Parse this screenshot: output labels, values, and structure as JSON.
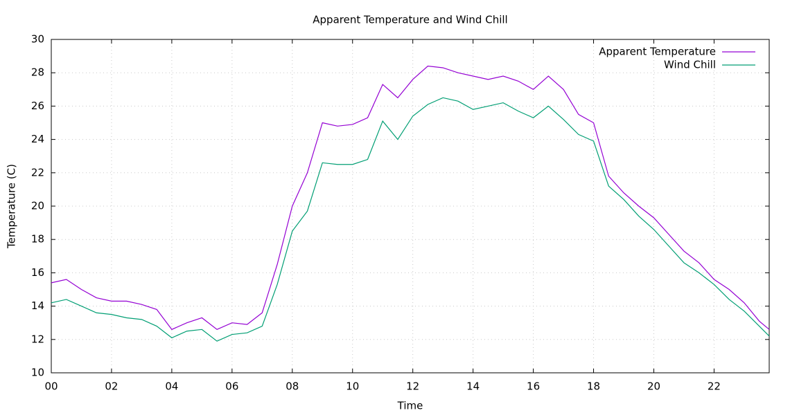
{
  "chart_data": {
    "type": "line",
    "title": "Apparent Temperature and Wind Chill",
    "x_label": "Time",
    "y_label": "Temperature (C)",
    "x": [
      0,
      0.5,
      1,
      1.5,
      2,
      2.5,
      3,
      3.5,
      4,
      4.5,
      5,
      5.5,
      6,
      6.5,
      7,
      7.5,
      8,
      8.5,
      9,
      9.5,
      10,
      10.5,
      11,
      11.5,
      12,
      12.5,
      13,
      13.5,
      14,
      14.5,
      15,
      15.5,
      16,
      16.5,
      17,
      17.5,
      18,
      18.5,
      19,
      19.5,
      20,
      20.5,
      21,
      21.5,
      22,
      22.5,
      23,
      23.5,
      23.83
    ],
    "series": [
      {
        "name": "Apparent Temperature",
        "color": "#9400d3",
        "values": [
          15.4,
          15.6,
          15.0,
          14.5,
          14.3,
          14.3,
          14.1,
          13.8,
          12.6,
          13.0,
          13.3,
          12.6,
          13.0,
          12.9,
          13.6,
          16.5,
          20.0,
          22.0,
          25.0,
          24.8,
          24.9,
          25.3,
          27.3,
          26.5,
          27.6,
          28.4,
          28.3,
          28.0,
          27.8,
          27.6,
          27.8,
          27.5,
          27.0,
          27.8,
          27.0,
          25.5,
          25.0,
          21.8,
          20.8,
          20.0,
          19.3,
          18.3,
          17.3,
          16.6,
          15.6,
          15.0,
          14.2,
          13.1,
          12.6
        ]
      },
      {
        "name": "Wind Chill",
        "color": "#009e73",
        "values": [
          14.2,
          14.4,
          14.0,
          13.6,
          13.5,
          13.3,
          13.2,
          12.8,
          12.1,
          12.5,
          12.6,
          11.9,
          12.3,
          12.4,
          12.8,
          15.3,
          18.5,
          19.7,
          22.6,
          22.5,
          22.5,
          22.8,
          25.1,
          24.0,
          25.4,
          26.1,
          26.5,
          26.3,
          25.8,
          26.0,
          26.2,
          25.7,
          25.3,
          26.0,
          25.2,
          24.3,
          23.9,
          21.2,
          20.4,
          19.4,
          18.6,
          17.6,
          16.6,
          16.0,
          15.3,
          14.4,
          13.7,
          12.8,
          12.2
        ]
      }
    ],
    "xlim": [
      0,
      23.83
    ],
    "xticks": [
      {
        "value": 0,
        "label": "00"
      },
      {
        "value": 2,
        "label": "02"
      },
      {
        "value": 4,
        "label": "04"
      },
      {
        "value": 6,
        "label": "06"
      },
      {
        "value": 8,
        "label": "08"
      },
      10,
      12,
      14,
      16,
      18,
      20,
      22
    ],
    "ylim": [
      10,
      30
    ],
    "yticks": [
      10,
      12,
      14,
      16,
      18,
      20,
      22,
      24,
      26,
      28,
      30
    ],
    "grid": true,
    "legend": "top-right"
  }
}
